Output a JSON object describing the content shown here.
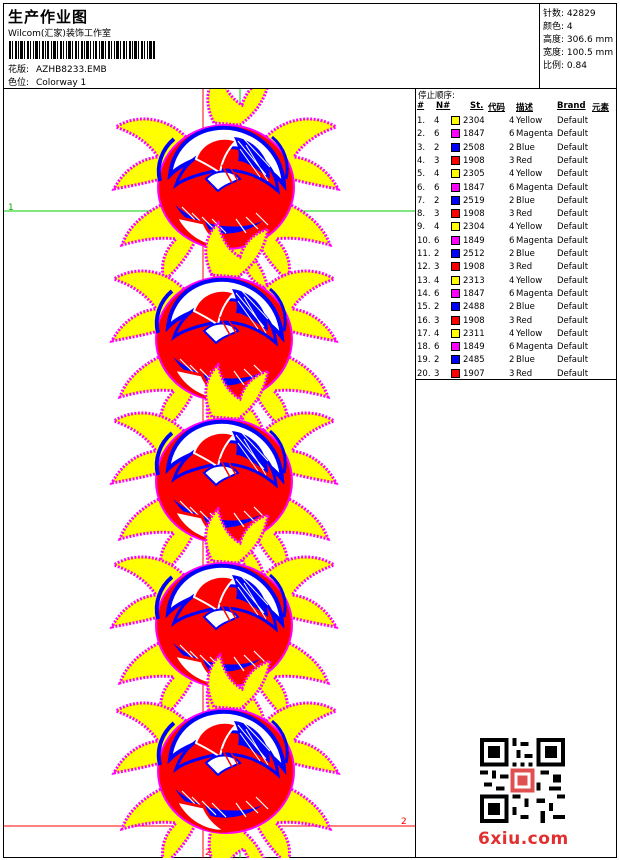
{
  "header": {
    "title": "生产作业图",
    "studio": "Wilcom(汇家)装饰工作室",
    "pattern_label": "花版:",
    "pattern_value": "AZHB8233.EMB",
    "colorway_label": "色位:",
    "colorway_value": "Colorway 1"
  },
  "stats": [
    {
      "label": "针数:",
      "value": "42829"
    },
    {
      "label": "颜色:",
      "value": "4"
    },
    {
      "label": "高度:",
      "value": "306.6 mm"
    },
    {
      "label": "宽度:",
      "value": "100.5 mm"
    },
    {
      "label": "比例:",
      "value": "0.84"
    }
  ],
  "stop_sequence": {
    "title": "停止顺序:",
    "headers": {
      "index": "#",
      "needle": "N#",
      "st": "St.",
      "code": "代码",
      "desc": "描述",
      "brand": "Brand",
      "element": "元素"
    },
    "rows": [
      {
        "index": "1.",
        "needle": "4",
        "code": "2304",
        "needle_no": "4",
        "desc": "Yellow",
        "brand": "Default",
        "color": "#ffff00"
      },
      {
        "index": "2.",
        "needle": "6",
        "code": "1847",
        "needle_no": "6",
        "desc": "Magenta",
        "brand": "Default",
        "color": "#ff00ff"
      },
      {
        "index": "3.",
        "needle": "2",
        "code": "2508",
        "needle_no": "2",
        "desc": "Blue",
        "brand": "Default",
        "color": "#0000ff"
      },
      {
        "index": "4.",
        "needle": "3",
        "code": "1908",
        "needle_no": "3",
        "desc": "Red",
        "brand": "Default",
        "color": "#ff0000"
      },
      {
        "index": "5.",
        "needle": "4",
        "code": "2305",
        "needle_no": "4",
        "desc": "Yellow",
        "brand": "Default",
        "color": "#ffff00"
      },
      {
        "index": "6.",
        "needle": "6",
        "code": "1847",
        "needle_no": "6",
        "desc": "Magenta",
        "brand": "Default",
        "color": "#ff00ff"
      },
      {
        "index": "7.",
        "needle": "2",
        "code": "2519",
        "needle_no": "2",
        "desc": "Blue",
        "brand": "Default",
        "color": "#0000ff"
      },
      {
        "index": "8.",
        "needle": "3",
        "code": "1908",
        "needle_no": "3",
        "desc": "Red",
        "brand": "Default",
        "color": "#ff0000"
      },
      {
        "index": "9.",
        "needle": "4",
        "code": "2304",
        "needle_no": "4",
        "desc": "Yellow",
        "brand": "Default",
        "color": "#ffff00"
      },
      {
        "index": "10.",
        "needle": "6",
        "code": "1849",
        "needle_no": "6",
        "desc": "Magenta",
        "brand": "Default",
        "color": "#ff00ff"
      },
      {
        "index": "11.",
        "needle": "2",
        "code": "2512",
        "needle_no": "2",
        "desc": "Blue",
        "brand": "Default",
        "color": "#0000ff"
      },
      {
        "index": "12.",
        "needle": "3",
        "code": "1908",
        "needle_no": "3",
        "desc": "Red",
        "brand": "Default",
        "color": "#ff0000"
      },
      {
        "index": "13.",
        "needle": "4",
        "code": "2313",
        "needle_no": "4",
        "desc": "Yellow",
        "brand": "Default",
        "color": "#ffff00"
      },
      {
        "index": "14.",
        "needle": "6",
        "code": "1847",
        "needle_no": "6",
        "desc": "Magenta",
        "brand": "Default",
        "color": "#ff00ff"
      },
      {
        "index": "15.",
        "needle": "2",
        "code": "2488",
        "needle_no": "2",
        "desc": "Blue",
        "brand": "Default",
        "color": "#0000ff"
      },
      {
        "index": "16.",
        "needle": "3",
        "code": "1908",
        "needle_no": "3",
        "desc": "Red",
        "brand": "Default",
        "color": "#ff0000"
      },
      {
        "index": "17.",
        "needle": "4",
        "code": "2311",
        "needle_no": "4",
        "desc": "Yellow",
        "brand": "Default",
        "color": "#ffff00"
      },
      {
        "index": "18.",
        "needle": "6",
        "code": "1849",
        "needle_no": "6",
        "desc": "Magenta",
        "brand": "Default",
        "color": "#ff00ff"
      },
      {
        "index": "19.",
        "needle": "2",
        "code": "2485",
        "needle_no": "2",
        "desc": "Blue",
        "brand": "Default",
        "color": "#0000ff"
      },
      {
        "index": "20.",
        "needle": "3",
        "code": "1907",
        "needle_no": "3",
        "desc": "Red",
        "brand": "Default",
        "color": "#ff0000"
      }
    ]
  },
  "design_markers": {
    "marker_1": "1",
    "marker_2_right": "2",
    "marker_2_bottom": "2"
  },
  "watermark": {
    "site": "6xiu.com"
  },
  "colors": {
    "yellow": "#ffff00",
    "magenta": "#ff00ff",
    "blue": "#0000ff",
    "red": "#ff0000",
    "guide_green": "#00cc00",
    "guide_red": "#ff0000"
  }
}
